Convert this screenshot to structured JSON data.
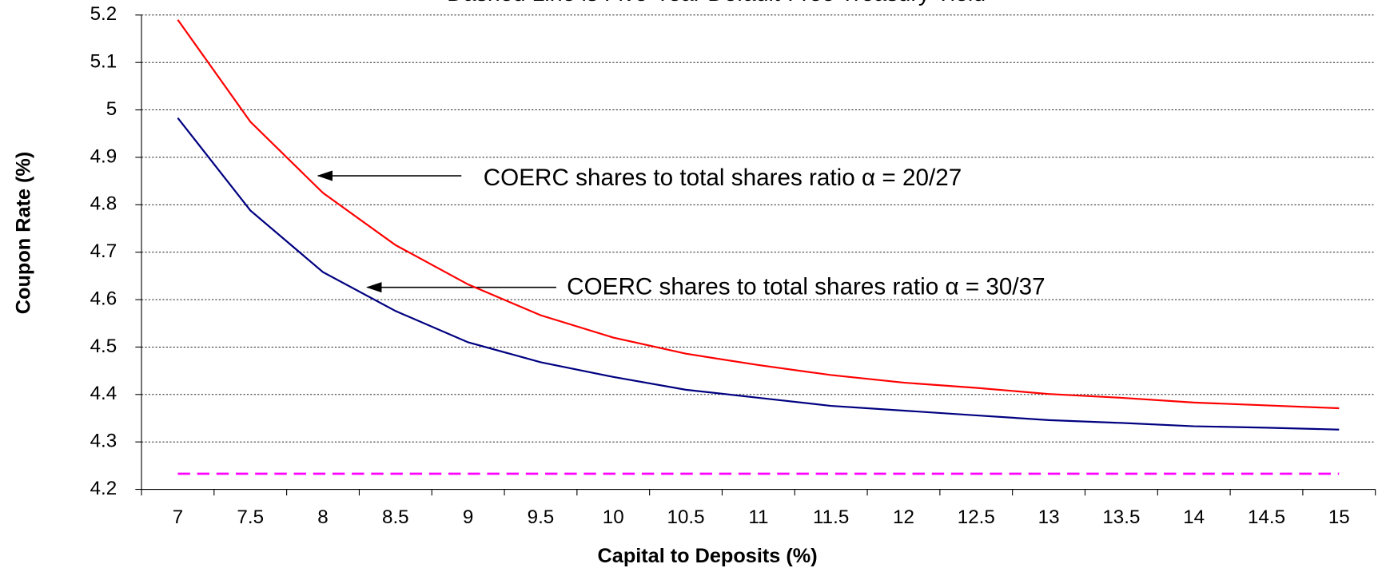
{
  "chart_data": {
    "type": "line",
    "title": "Dashed Line is Five-Year Default-Free Treasury Yield",
    "x_label": "Capital to Deposits (%)",
    "y_label": "Coupon Rate (%)",
    "categories": [
      7,
      7.5,
      8,
      8.5,
      9,
      9.5,
      10,
      10.5,
      11,
      11.5,
      12,
      12.5,
      13,
      13.5,
      14,
      14.5,
      15
    ],
    "series": [
      {
        "color": "#ff0000",
        "dash": false,
        "values": [
          5.19,
          4.975,
          4.825,
          4.715,
          4.632,
          4.567,
          4.52,
          4.486,
          4.462,
          4.441,
          4.425,
          4.414,
          4.401,
          4.393,
          4.383,
          4.377,
          4.371
        ]
      },
      {
        "color": "#000080",
        "dash": false,
        "values": [
          4.983,
          4.788,
          4.658,
          4.576,
          4.51,
          4.468,
          4.437,
          4.41,
          4.393,
          4.376,
          4.366,
          4.356,
          4.346,
          4.34,
          4.333,
          4.33,
          4.326
        ]
      },
      {
        "color": "#ff00ff",
        "dash": true,
        "values": [
          4.233,
          4.233,
          4.233,
          4.233,
          4.233,
          4.233,
          4.233,
          4.233,
          4.233,
          4.233,
          4.233,
          4.233,
          4.233,
          4.233,
          4.233,
          4.233,
          4.233
        ]
      }
    ],
    "annotations": [
      "COERC shares to total shares ratio α = 20/27",
      "COERC shares to total shares ratio α = 30/37"
    ],
    "ylim": [
      4.2,
      5.2
    ],
    "yticks": [
      4.2,
      4.3,
      4.4,
      4.5,
      4.6,
      4.7,
      4.8,
      4.9,
      5,
      5.1,
      5.2
    ],
    "grid": true
  }
}
